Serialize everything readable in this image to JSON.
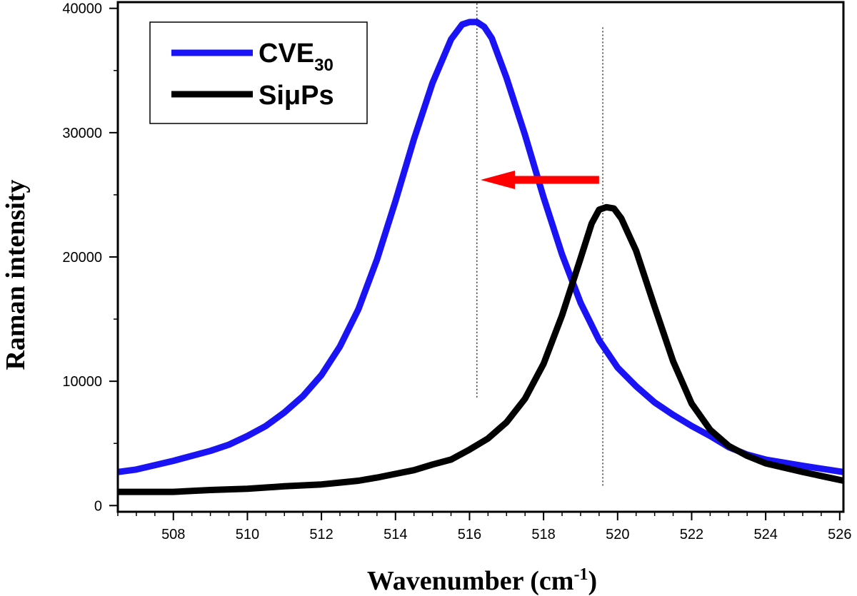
{
  "chart_data": {
    "type": "line",
    "xlabel": "Wavenumber (cm",
    "xlabel_sup": "-1",
    "xlabel_end": ")",
    "ylabel": "Raman intensity",
    "xlim": [
      506.5,
      526.1
    ],
    "ylim": [
      -500,
      40500
    ],
    "x_ticks": [
      508,
      510,
      512,
      514,
      516,
      518,
      520,
      522,
      524,
      526
    ],
    "y_ticks": [
      0,
      10000,
      20000,
      30000,
      40000
    ],
    "legend": [
      {
        "label": "CVE",
        "sub": "30",
        "color": "#1a13f5"
      },
      {
        "label": "SiμPs",
        "sub": "",
        "color": "#000000"
      }
    ],
    "series": [
      {
        "name": "CVE30",
        "color": "#1a13f5",
        "x": [
          506.5,
          507.0,
          508.0,
          509.0,
          509.5,
          510.0,
          510.5,
          511.0,
          511.5,
          512.0,
          512.5,
          513.0,
          513.5,
          514.0,
          514.5,
          515.0,
          515.5,
          515.8,
          516.0,
          516.2,
          516.4,
          516.6,
          517.0,
          517.5,
          518.0,
          518.5,
          519.0,
          519.5,
          520.0,
          520.5,
          521.0,
          521.5,
          522.0,
          522.5,
          523.0,
          523.5,
          524.0,
          525.0,
          526.1
        ],
        "y": [
          2700,
          2900,
          3600,
          4400,
          4900,
          5600,
          6400,
          7500,
          8800,
          10500,
          12800,
          15800,
          19800,
          24500,
          29500,
          34000,
          37500,
          38700,
          38900,
          38900,
          38500,
          37600,
          34400,
          29800,
          24800,
          20200,
          16300,
          13300,
          11100,
          9600,
          8300,
          7300,
          6400,
          5600,
          4700,
          4100,
          3700,
          3200,
          2700
        ]
      },
      {
        "name": "SiμPs",
        "color": "#000000",
        "x": [
          506.5,
          508.0,
          509.0,
          510.0,
          511.0,
          512.0,
          512.5,
          513.0,
          513.5,
          514.0,
          514.5,
          515.0,
          515.5,
          516.0,
          516.5,
          517.0,
          517.5,
          518.0,
          518.5,
          519.0,
          519.3,
          519.5,
          519.7,
          519.9,
          520.1,
          520.5,
          521.0,
          521.5,
          522.0,
          522.5,
          523.0,
          523.5,
          524.0,
          525.0,
          526.1
        ],
        "y": [
          1100,
          1100,
          1250,
          1350,
          1550,
          1700,
          1850,
          2000,
          2250,
          2550,
          2850,
          3300,
          3700,
          4500,
          5400,
          6700,
          8600,
          11400,
          15300,
          19900,
          22700,
          23800,
          24000,
          23900,
          23100,
          20500,
          16000,
          11600,
          8200,
          6100,
          4800,
          4000,
          3400,
          2700,
          2000
        ]
      }
    ],
    "annotations": [
      {
        "type": "dotted-vline",
        "x": 516.2,
        "y_from": 8700,
        "y_to": 40500
      },
      {
        "type": "dotted-vline",
        "x": 519.6,
        "y_from": 1600,
        "y_to": 38500
      },
      {
        "type": "arrow",
        "color": "#ff0000",
        "from_x": 519.5,
        "to_x": 516.3,
        "y": 26200
      }
    ]
  }
}
